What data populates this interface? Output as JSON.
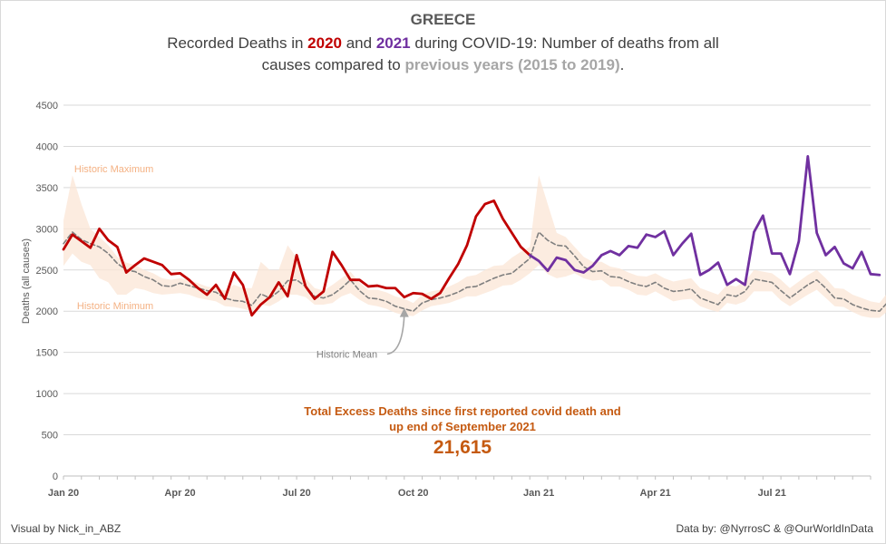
{
  "chart_data": {
    "type": "line",
    "title": "GREECE",
    "subtitle_parts": [
      "Recorded Deaths in ",
      "2020",
      " and ",
      "2021",
      " during COVID-19: Number of deaths from all",
      "causes compared to ",
      "previous years (2015 to 2019)",
      "."
    ],
    "ylabel": "Deaths (all causes)",
    "ylim": [
      0,
      4500
    ],
    "yticks": [
      0,
      500,
      1000,
      1500,
      2000,
      2500,
      3000,
      3500,
      4000,
      4500
    ],
    "xticks": [
      {
        "week": 1,
        "label": "Jan 20"
      },
      {
        "week": 14,
        "label": "Apr 20"
      },
      {
        "week": 27,
        "label": "Jul 20"
      },
      {
        "week": 40,
        "label": "Oct 20"
      },
      {
        "week": 54,
        "label": "Jan 21"
      },
      {
        "week": 67,
        "label": "Apr 21"
      },
      {
        "week": 80,
        "label": "Jul 21"
      }
    ],
    "week_range": [
      1,
      91
    ],
    "grid": true,
    "colors": {
      "y2020": "#c00000",
      "y2021": "#7030a0",
      "mean": "#7f7f7f",
      "band": "#fbe5d6",
      "band_label": "#f4b183",
      "excess": "#c55a11"
    },
    "series": [
      {
        "name": "2020",
        "start_week": 1,
        "values": [
          2750,
          2930,
          2850,
          2770,
          3000,
          2860,
          2780,
          2470,
          2560,
          2640,
          2600,
          2560,
          2450,
          2460,
          2380,
          2280,
          2200,
          2320,
          2150,
          2470,
          2320,
          1950,
          2080,
          2170,
          2350,
          2180,
          2680,
          2300,
          2150,
          2240,
          2720,
          2560,
          2380,
          2380,
          2300,
          2310,
          2280,
          2280,
          2170,
          2220,
          2210,
          2150,
          2220,
          2400,
          2570,
          2800,
          3150,
          3300,
          3340,
          3120,
          2950,
          2780,
          2680
        ]
      },
      {
        "name": "2021",
        "start_week": 53,
        "values": [
          2680,
          2610,
          2490,
          2650,
          2620,
          2500,
          2470,
          2550,
          2680,
          2730,
          2680,
          2790,
          2770,
          2930,
          2900,
          2970,
          2680,
          2820,
          2940,
          2440,
          2500,
          2590,
          2320,
          2390,
          2320,
          2960,
          3160,
          2700,
          2700,
          2450,
          2850,
          3880,
          2950,
          2680,
          2780,
          2580,
          2520,
          2720,
          2450,
          2440
        ]
      },
      {
        "name": "Historic Mean",
        "start_week": 1,
        "values": [
          2820,
          2960,
          2870,
          2820,
          2780,
          2700,
          2580,
          2500,
          2480,
          2420,
          2380,
          2310,
          2300,
          2340,
          2310,
          2280,
          2250,
          2230,
          2160,
          2130,
          2120,
          2070,
          2210,
          2160,
          2240,
          2370,
          2380,
          2300,
          2180,
          2160,
          2200,
          2280,
          2380,
          2250,
          2160,
          2150,
          2120,
          2060,
          2030,
          2000,
          2100,
          2140,
          2160,
          2190,
          2230,
          2290,
          2300,
          2350,
          2400,
          2440,
          2460,
          2550,
          2640,
          2960,
          2860,
          2800,
          2790,
          2670,
          2540,
          2480,
          2490,
          2420,
          2410,
          2360,
          2320,
          2300,
          2350,
          2280,
          2240,
          2250,
          2270,
          2160,
          2120,
          2080,
          2200,
          2180,
          2240,
          2390,
          2370,
          2350,
          2250,
          2160,
          2240,
          2320,
          2380,
          2280,
          2160,
          2150,
          2080,
          2040,
          2010,
          2000,
          2120
        ]
      },
      {
        "name": "Historic Maximum",
        "start_week": 1,
        "values": [
          3100,
          3650,
          3300,
          3000,
          2900,
          2800,
          2660,
          2590,
          2560,
          2500,
          2460,
          2400,
          2380,
          2400,
          2380,
          2340,
          2300,
          2280,
          2250,
          2320,
          2280,
          2280,
          2600,
          2500,
          2500,
          2800,
          2650,
          2400,
          2280,
          2250,
          2320,
          2400,
          2480,
          2350,
          2260,
          2260,
          2230,
          2180,
          2150,
          2100,
          2200,
          2240,
          2260,
          2300,
          2350,
          2420,
          2440,
          2500,
          2550,
          2560,
          2650,
          2720,
          2780,
          3650,
          3300,
          2950,
          2900,
          2780,
          2660,
          2600,
          2600,
          2540,
          2520,
          2470,
          2430,
          2420,
          2460,
          2400,
          2360,
          2380,
          2400,
          2280,
          2240,
          2200,
          2320,
          2300,
          2360,
          2500,
          2480,
          2460,
          2380,
          2280,
          2360,
          2440,
          2500,
          2400,
          2280,
          2270,
          2200,
          2160,
          2120,
          2100,
          2240
        ]
      },
      {
        "name": "Historic Minimum",
        "start_week": 1,
        "values": [
          2550,
          2700,
          2600,
          2560,
          2400,
          2350,
          2200,
          2200,
          2280,
          2260,
          2220,
          2200,
          2210,
          2220,
          2200,
          2160,
          2140,
          2120,
          2060,
          2050,
          2030,
          2000,
          2080,
          2060,
          2120,
          2200,
          2200,
          2170,
          2080,
          2080,
          2100,
          2180,
          2220,
          2140,
          2080,
          2060,
          2030,
          1980,
          1950,
          1940,
          2010,
          2060,
          2080,
          2100,
          2140,
          2180,
          2180,
          2220,
          2260,
          2310,
          2320,
          2380,
          2460,
          2560,
          2450,
          2400,
          2420,
          2460,
          2400,
          2370,
          2380,
          2300,
          2300,
          2260,
          2200,
          2190,
          2240,
          2180,
          2120,
          2140,
          2150,
          2060,
          2020,
          1990,
          2100,
          2080,
          2120,
          2240,
          2240,
          2240,
          2130,
          2060,
          2130,
          2200,
          2260,
          2160,
          2060,
          2050,
          1990,
          1940,
          1920,
          1920,
          2010
        ]
      }
    ],
    "annotations": {
      "historic_maximum": {
        "text": "Historic Maximum",
        "week": 2,
        "value": 3730
      },
      "historic_minimum": {
        "text": "Historic Minimum",
        "week": 2,
        "value": 2070
      },
      "historic_mean": {
        "text": "Historic Mean",
        "week": 29,
        "value": 1480,
        "arrow_to_week": 39,
        "arrow_to_value": 2040
      }
    },
    "excess": {
      "line1": "Total Excess Deaths since first reported covid death and",
      "line2": "up end of September 2021",
      "value": "21,615"
    }
  },
  "credits": {
    "left": "Visual by Nick_in_ABZ",
    "right": "Data by: @NyrrosC & @OurWorldInData"
  }
}
